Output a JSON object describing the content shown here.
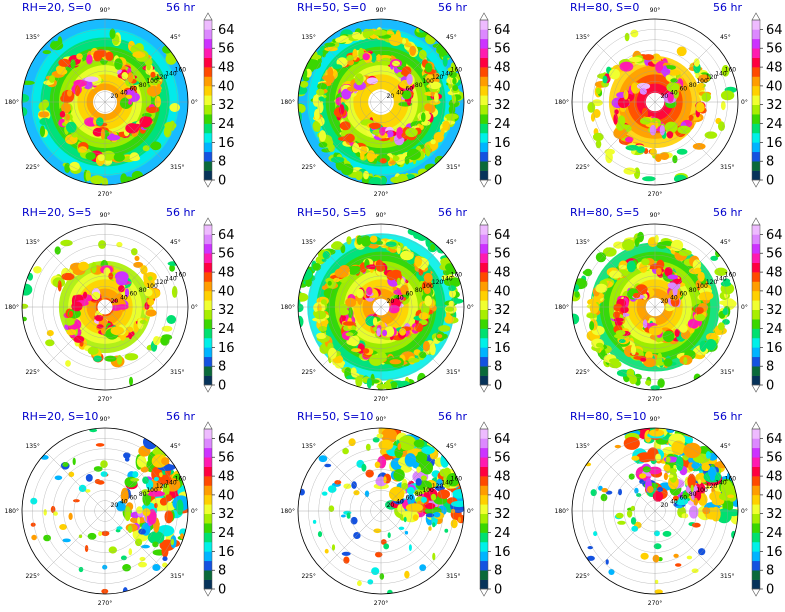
{
  "chart_data": {
    "type": "polar-contour-grid",
    "forecast_hour_label": "56 hr",
    "colorbar": {
      "ticks": [
        "0",
        "8",
        "16",
        "24",
        "32",
        "40",
        "48",
        "56",
        "64"
      ],
      "levels": [
        0,
        4,
        8,
        12,
        16,
        20,
        24,
        28,
        32,
        36,
        40,
        44,
        48,
        52,
        56,
        60,
        64,
        68
      ],
      "colors": [
        "#07335a",
        "#0a6a3a",
        "#1452e0",
        "#00b4ff",
        "#00f0e8",
        "#00e070",
        "#3ad700",
        "#a8ee00",
        "#f0ff30",
        "#ffd000",
        "#ff9d00",
        "#ff4a00",
        "#ff0040",
        "#ff1ab0",
        "#cc33ff",
        "#dc88ff",
        "#eebbff"
      ]
    },
    "angle_ticks": [
      "0°",
      "45°",
      "90°",
      "135°",
      "180°",
      "225°",
      "270°",
      "315°"
    ],
    "radial_ticks": [
      "20",
      "40",
      "60",
      "80",
      "100",
      "120",
      "140",
      "160"
    ],
    "panels": [
      {
        "title": "RH=20, S=0",
        "pattern": "spiral-eye",
        "eye_radius": 20,
        "coverage": 0.62,
        "shear_sector": null
      },
      {
        "title": "RH=50, S=0",
        "pattern": "spiral-eye",
        "eye_radius": 22,
        "coverage": 0.95,
        "shear_sector": null
      },
      {
        "title": "RH=80, S=0",
        "pattern": "compact-ring",
        "eye_radius": 14,
        "coverage": 0.55,
        "shear_sector": null
      },
      {
        "title": "RH=20, S=5",
        "pattern": "spiral",
        "eye_radius": 10,
        "coverage": 0.5,
        "shear_sector": null
      },
      {
        "title": "RH=50, S=5",
        "pattern": "spiral",
        "eye_radius": 12,
        "coverage": 0.88,
        "shear_sector": null
      },
      {
        "title": "RH=80, S=5",
        "pattern": "spiral",
        "eye_radius": 14,
        "coverage": 0.78,
        "shear_sector": null
      },
      {
        "title": "RH=20, S=10",
        "pattern": "sheared",
        "eye_radius": 0,
        "coverage": 0.2,
        "shear_sector": [
          -40,
          60
        ]
      },
      {
        "title": "RH=50, S=10",
        "pattern": "sheared",
        "eye_radius": 0,
        "coverage": 0.35,
        "shear_sector": [
          -10,
          90
        ]
      },
      {
        "title": "RH=80, S=10",
        "pattern": "sheared",
        "eye_radius": 0,
        "coverage": 0.4,
        "shear_sector": [
          -5,
          110
        ]
      }
    ]
  }
}
